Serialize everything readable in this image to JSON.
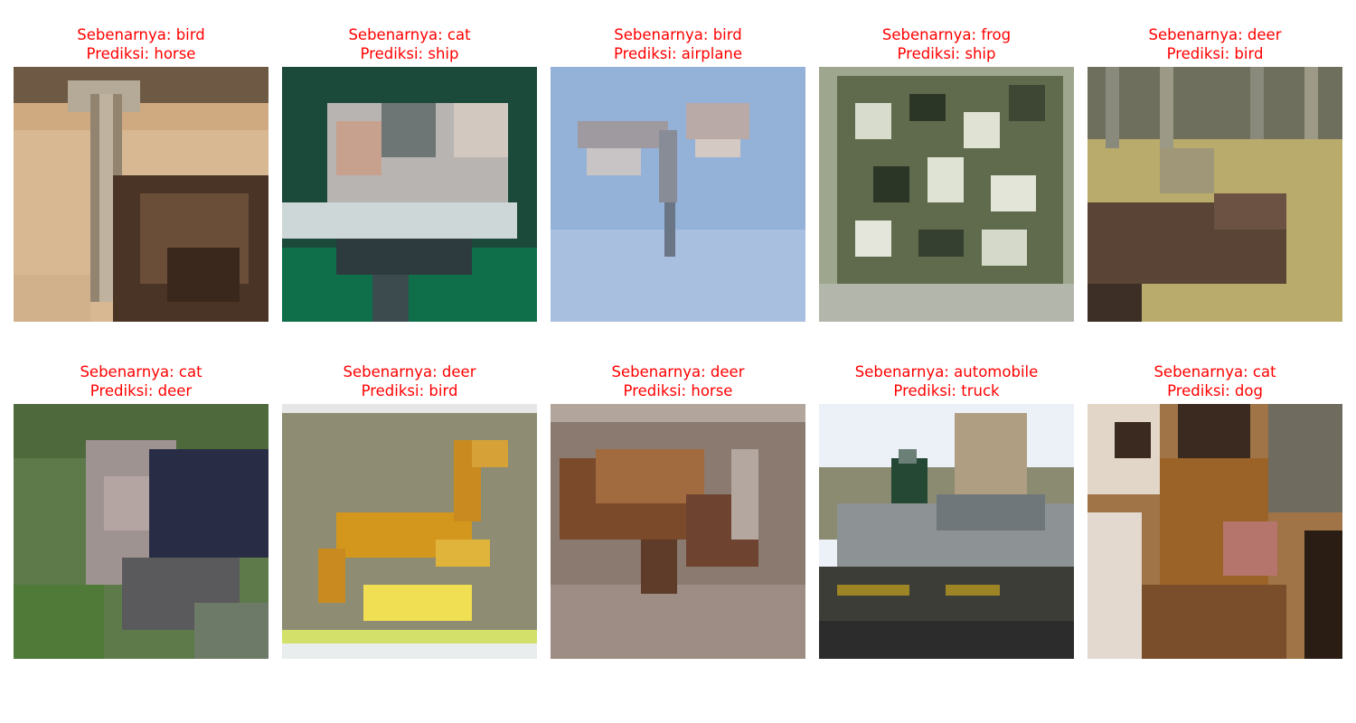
{
  "grid": {
    "items": [
      {
        "actual": "Sebenarnya: bird",
        "predicted": "Prediksi: horse",
        "scene": "ostrich-on-sand"
      },
      {
        "actual": "Sebenarnya: cat",
        "predicted": "Prediksi: ship",
        "scene": "cat-on-green"
      },
      {
        "actual": "Sebenarnya: bird",
        "predicted": "Prediksi: airplane",
        "scene": "bird-in-sky"
      },
      {
        "actual": "Sebenarnya: frog",
        "predicted": "Prediksi: ship",
        "scene": "spotted-frog"
      },
      {
        "actual": "Sebenarnya: deer",
        "predicted": "Prediksi: bird",
        "scene": "elk-in-field"
      },
      {
        "actual": "Sebenarnya: cat",
        "predicted": "Prediksi: deer",
        "scene": "cat-in-grass"
      },
      {
        "actual": "Sebenarnya: deer",
        "predicted": "Prediksi: bird",
        "scene": "leaping-antelope"
      },
      {
        "actual": "Sebenarnya: deer",
        "predicted": "Prediksi: horse",
        "scene": "grazing-deer"
      },
      {
        "actual": "Sebenarnya: automobile",
        "predicted": "Prediksi: truck",
        "scene": "car-with-person"
      },
      {
        "actual": "Sebenarnya: cat",
        "predicted": "Prediksi: dog",
        "scene": "cat-closeup"
      }
    ]
  },
  "colors": {
    "title_text": "#ff0000",
    "background": "#ffffff"
  }
}
